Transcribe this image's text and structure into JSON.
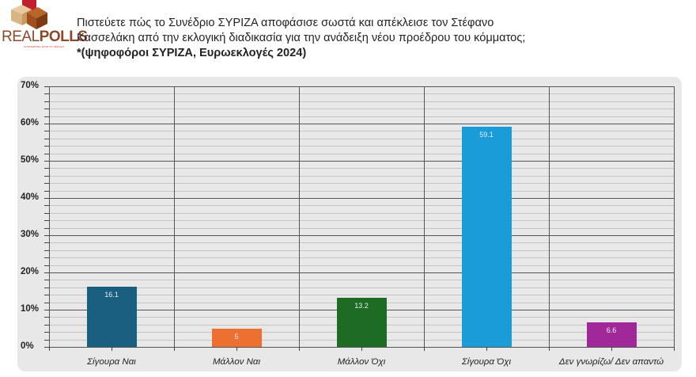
{
  "header": {
    "logo": {
      "text_thin": "REAL",
      "text_bold": "POLLS",
      "tagline": "CONVERTING DATA TO INSIGHT"
    },
    "question_line1": "Πιστεύετε πώς το Συνέδριο ΣΥΡΙΖΑ αποφάσισε σωστά και απέκλεισε τον Στέφανο",
    "question_line2": "Κασσελάκη από την εκλογική διαδικασία για την ανάδειξη νέου προέδρου του κόμματος;",
    "subtitle": "*(ψηφοφόροι ΣΥΡΙΖΑ, Ευρωεκλογές 2024)"
  },
  "chart_data": {
    "type": "bar",
    "title": "Πιστεύετε πώς το Συνέδριο ΣΥΡΙΖΑ αποφάσισε σωστά και απέκλεισε τον Στέφανο Κασσελάκη από την εκλογική διαδικασία για την ανάδειξη νέου προέδρου του κόμματος;",
    "subtitle": "*(ψηφοφόροι ΣΥΡΙΖΑ, Ευρωεκλογές 2024)",
    "categories": [
      "Σίγουρα Ναι",
      "Μάλλον Ναι",
      "Μάλλον Όχι",
      "Σίγουρα Όχι",
      "Δεν γνωρίζω/ Δεν απαντώ"
    ],
    "values": [
      16.1,
      5,
      13.2,
      59.1,
      6.6
    ],
    "value_labels": [
      "16.1",
      "5",
      "13.2",
      "59.1",
      "6.6"
    ],
    "colors": [
      "#1a5e80",
      "#ec7032",
      "#1e6b23",
      "#1a9cd8",
      "#a02898"
    ],
    "xlabel": "",
    "ylabel": "",
    "ylim": [
      0,
      70
    ],
    "yticks": [
      "0%",
      "10%",
      "20%",
      "30%",
      "40%",
      "50%",
      "60%",
      "70%"
    ],
    "grid": true,
    "minor_grid_step": 2,
    "legend": "none"
  }
}
